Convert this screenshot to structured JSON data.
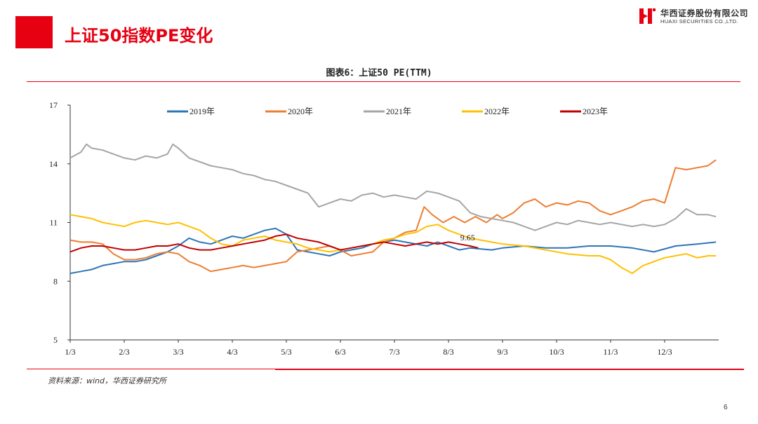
{
  "header": {
    "title": "上证50指数PE变化",
    "accent_color": "#e60012"
  },
  "logo": {
    "cn": "华西证券股份有限公司",
    "en": "HUAXI SECURITIES CO.,LTD."
  },
  "page_number": "6",
  "source": "资料来源：wind，华西证券研究所",
  "chart_data": {
    "type": "line",
    "title": "图表6：上证50 PE(TTM)",
    "xlabel": "",
    "ylabel": "",
    "ylim": [
      5,
      17
    ],
    "yticks": [
      5,
      8,
      11,
      14,
      17
    ],
    "xlim": [
      0,
      12
    ],
    "xtick_labels": [
      "1/3",
      "2/3",
      "3/3",
      "4/3",
      "5/3",
      "6/3",
      "7/3",
      "8/3",
      "9/3",
      "10/3",
      "11/3",
      "12/3"
    ],
    "grid": false,
    "legend_position": "top",
    "annotations": [
      {
        "text": "9.65",
        "x": 7.4,
        "y": 9.65
      }
    ],
    "series": [
      {
        "name": "2019年",
        "color": "#2e75b6",
        "x": [
          0,
          0.2,
          0.4,
          0.6,
          0.8,
          1.0,
          1.2,
          1.4,
          1.6,
          1.8,
          2.0,
          2.2,
          2.4,
          2.6,
          2.8,
          3.0,
          3.2,
          3.4,
          3.6,
          3.8,
          4.0,
          4.2,
          4.4,
          4.6,
          4.8,
          5.0,
          5.2,
          5.4,
          5.6,
          5.8,
          6.0,
          6.2,
          6.4,
          6.6,
          6.8,
          7.0,
          7.2,
          7.4,
          7.6,
          7.8,
          8.0,
          8.4,
          8.8,
          9.2,
          9.6,
          10.0,
          10.4,
          10.8,
          11.2,
          11.6,
          11.95
        ],
        "values": [
          8.4,
          8.5,
          8.6,
          8.8,
          8.9,
          9.0,
          9.0,
          9.1,
          9.3,
          9.5,
          9.8,
          10.2,
          10.0,
          9.9,
          10.1,
          10.3,
          10.2,
          10.4,
          10.6,
          10.7,
          10.4,
          9.6,
          9.5,
          9.4,
          9.3,
          9.5,
          9.6,
          9.7,
          9.9,
          10.0,
          10.1,
          10.0,
          9.9,
          9.8,
          10.0,
          9.8,
          9.6,
          9.7,
          9.65,
          9.6,
          9.7,
          9.8,
          9.7,
          9.7,
          9.8,
          9.8,
          9.7,
          9.5,
          9.8,
          9.9,
          10.0
        ]
      },
      {
        "name": "2020年",
        "color": "#ed7d31",
        "x": [
          0,
          0.2,
          0.4,
          0.6,
          0.8,
          1.0,
          1.2,
          1.4,
          1.6,
          1.8,
          2.0,
          2.2,
          2.4,
          2.6,
          2.8,
          3.0,
          3.2,
          3.4,
          3.6,
          3.8,
          4.0,
          4.2,
          4.4,
          4.6,
          4.8,
          5.0,
          5.2,
          5.4,
          5.6,
          5.8,
          6.0,
          6.2,
          6.4,
          6.55,
          6.7,
          6.9,
          7.1,
          7.3,
          7.5,
          7.7,
          7.9,
          8.0,
          8.2,
          8.4,
          8.6,
          8.8,
          9.0,
          9.2,
          9.4,
          9.6,
          9.8,
          10.0,
          10.2,
          10.4,
          10.6,
          10.8,
          11.0,
          11.2,
          11.4,
          11.6,
          11.8,
          11.95
        ],
        "values": [
          10.1,
          10.0,
          10.0,
          9.9,
          9.4,
          9.1,
          9.1,
          9.2,
          9.4,
          9.5,
          9.4,
          9.0,
          8.8,
          8.5,
          8.6,
          8.7,
          8.8,
          8.7,
          8.8,
          8.9,
          9.0,
          9.5,
          9.6,
          9.7,
          9.8,
          9.6,
          9.3,
          9.4,
          9.5,
          10.0,
          10.2,
          10.5,
          10.6,
          11.8,
          11.4,
          11.0,
          11.3,
          11.0,
          11.3,
          11.0,
          11.4,
          11.2,
          11.5,
          12.0,
          12.2,
          11.8,
          12.0,
          11.9,
          12.1,
          12.0,
          11.6,
          11.4,
          11.6,
          11.8,
          12.1,
          12.2,
          12.0,
          13.8,
          13.7,
          13.8,
          13.9,
          14.2
        ]
      },
      {
        "name": "2021年",
        "color": "#a5a5a5",
        "x": [
          0,
          0.2,
          0.3,
          0.4,
          0.6,
          0.8,
          1.0,
          1.2,
          1.4,
          1.6,
          1.8,
          1.9,
          2.0,
          2.2,
          2.4,
          2.6,
          2.8,
          3.0,
          3.2,
          3.4,
          3.6,
          3.8,
          4.0,
          4.2,
          4.4,
          4.6,
          4.8,
          5.0,
          5.2,
          5.4,
          5.6,
          5.8,
          6.0,
          6.2,
          6.4,
          6.6,
          6.8,
          7.0,
          7.2,
          7.4,
          7.6,
          7.8,
          8.0,
          8.2,
          8.4,
          8.6,
          8.8,
          9.0,
          9.2,
          9.4,
          9.6,
          9.8,
          10.0,
          10.2,
          10.4,
          10.6,
          10.8,
          11.0,
          11.2,
          11.4,
          11.6,
          11.8,
          11.95
        ],
        "values": [
          14.3,
          14.6,
          15.0,
          14.8,
          14.7,
          14.5,
          14.3,
          14.2,
          14.4,
          14.3,
          14.5,
          15.0,
          14.8,
          14.3,
          14.1,
          13.9,
          13.8,
          13.7,
          13.5,
          13.4,
          13.2,
          13.1,
          12.9,
          12.7,
          12.5,
          11.8,
          12.0,
          12.2,
          12.1,
          12.4,
          12.5,
          12.3,
          12.4,
          12.3,
          12.2,
          12.6,
          12.5,
          12.3,
          12.1,
          11.5,
          11.3,
          11.2,
          11.1,
          11.0,
          10.8,
          10.6,
          10.8,
          11.0,
          10.9,
          11.1,
          11.0,
          10.9,
          11.0,
          10.9,
          10.8,
          10.9,
          10.8,
          10.9,
          11.2,
          11.7,
          11.4,
          11.4,
          11.3
        ]
      },
      {
        "name": "2022年",
        "color": "#ffc000",
        "x": [
          0,
          0.2,
          0.4,
          0.6,
          0.8,
          1.0,
          1.2,
          1.4,
          1.6,
          1.8,
          2.0,
          2.2,
          2.4,
          2.6,
          2.8,
          3.0,
          3.2,
          3.4,
          3.6,
          3.8,
          4.0,
          4.2,
          4.4,
          4.6,
          4.8,
          5.0,
          5.2,
          5.4,
          5.6,
          5.8,
          6.0,
          6.2,
          6.4,
          6.6,
          6.8,
          7.0,
          7.2,
          7.4,
          7.6,
          7.8,
          8.0,
          8.4,
          8.8,
          9.2,
          9.6,
          9.8,
          10.0,
          10.2,
          10.4,
          10.6,
          10.8,
          11.0,
          11.2,
          11.4,
          11.6,
          11.8,
          11.95
        ],
        "values": [
          11.4,
          11.3,
          11.2,
          11.0,
          10.9,
          10.8,
          11.0,
          11.1,
          11.0,
          10.9,
          11.0,
          10.8,
          10.6,
          10.2,
          9.9,
          9.8,
          10.1,
          10.2,
          10.3,
          10.1,
          10.0,
          9.9,
          9.7,
          9.6,
          9.5,
          9.6,
          9.7,
          9.8,
          9.9,
          10.1,
          10.2,
          10.4,
          10.5,
          10.8,
          10.9,
          10.6,
          10.4,
          10.2,
          10.1,
          10.0,
          9.9,
          9.8,
          9.6,
          9.4,
          9.3,
          9.3,
          9.1,
          8.7,
          8.4,
          8.8,
          9.0,
          9.2,
          9.3,
          9.4,
          9.2,
          9.3,
          9.3
        ]
      },
      {
        "name": "2023年",
        "color": "#c00000",
        "x": [
          0,
          0.2,
          0.4,
          0.6,
          0.8,
          1.0,
          1.2,
          1.4,
          1.6,
          1.8,
          2.0,
          2.2,
          2.4,
          2.6,
          2.8,
          3.0,
          3.2,
          3.4,
          3.6,
          3.8,
          4.0,
          4.2,
          4.4,
          4.6,
          4.8,
          5.0,
          5.2,
          5.4,
          5.6,
          5.8,
          6.0,
          6.2,
          6.4,
          6.6,
          6.8,
          7.0,
          7.2,
          7.4,
          7.55
        ],
        "values": [
          9.5,
          9.7,
          9.8,
          9.8,
          9.7,
          9.6,
          9.6,
          9.7,
          9.8,
          9.8,
          9.9,
          9.7,
          9.6,
          9.6,
          9.7,
          9.8,
          9.9,
          10.0,
          10.1,
          10.3,
          10.4,
          10.2,
          10.1,
          10.0,
          9.8,
          9.6,
          9.7,
          9.8,
          9.9,
          10.0,
          9.9,
          9.8,
          9.9,
          10.0,
          9.9,
          10.0,
          9.9,
          9.8,
          9.7
        ]
      }
    ]
  }
}
